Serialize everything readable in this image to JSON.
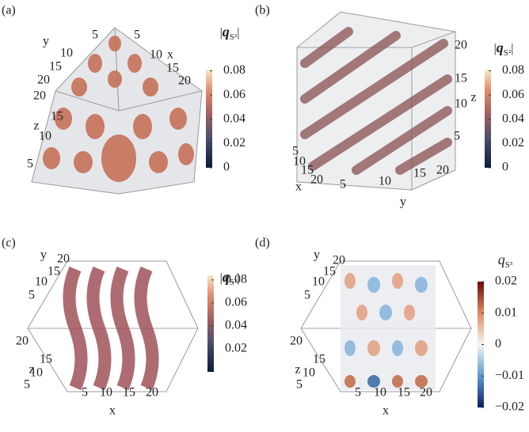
{
  "panels": [
    {
      "label": "(a)",
      "colorbar": {
        "title": [
          "|",
          "q",
          "S²",
          "|"
        ],
        "lim": [
          0,
          0.081
        ],
        "ticks": [
          0,
          0.02,
          0.04,
          0.06,
          0.08
        ]
      },
      "axes": [
        {
          "name": "y",
          "ticks": [
            5,
            10,
            15,
            20
          ]
        },
        {
          "name": "x",
          "ticks": [
            5,
            10,
            15,
            20
          ]
        },
        {
          "name": "z",
          "ticks": [
            5,
            10,
            15,
            20
          ]
        }
      ]
    },
    {
      "label": "(b)",
      "colorbar": {
        "title": [
          "|",
          "q",
          "S²",
          "|"
        ],
        "lim": [
          0,
          0.081
        ],
        "ticks": [
          0,
          0.02,
          0.04,
          0.06,
          0.08
        ]
      },
      "axes": [
        {
          "name": "z",
          "ticks": [
            5,
            10,
            15,
            20
          ]
        },
        {
          "name": "x",
          "ticks": [
            5,
            10,
            15,
            20
          ]
        },
        {
          "name": "y",
          "ticks": [
            5,
            10,
            15,
            20
          ]
        }
      ]
    },
    {
      "label": "(c)",
      "colorbar": {
        "title": [
          "|",
          "q",
          "S²",
          "|"
        ],
        "lim": [
          0,
          0.084
        ],
        "ticks": [
          0.02,
          0.04,
          0.06,
          0.08
        ]
      },
      "axes": [
        {
          "name": "y",
          "ticks": [
            5,
            10,
            15,
            20
          ]
        },
        {
          "name": "z",
          "ticks": [
            5,
            10,
            15,
            20
          ]
        },
        {
          "name": "x",
          "ticks": [
            5,
            10,
            15,
            20
          ]
        }
      ]
    },
    {
      "label": "(d)",
      "colorbar": {
        "title": [
          "q",
          "S³"
        ],
        "lim": [
          -0.02,
          0.02
        ],
        "ticks": [
          {
            "value": -0.02,
            "label": "−0.02"
          },
          {
            "value": -0.01,
            "label": "−0.01"
          },
          0,
          0.01,
          0.02
        ]
      },
      "axes": [
        {
          "name": "y",
          "ticks": [
            5,
            10,
            15,
            20
          ]
        },
        {
          "name": "z",
          "ticks": [
            5,
            10,
            15,
            20
          ]
        },
        {
          "name": "x",
          "ticks": [
            5,
            10,
            15,
            20
          ]
        }
      ]
    }
  ]
}
